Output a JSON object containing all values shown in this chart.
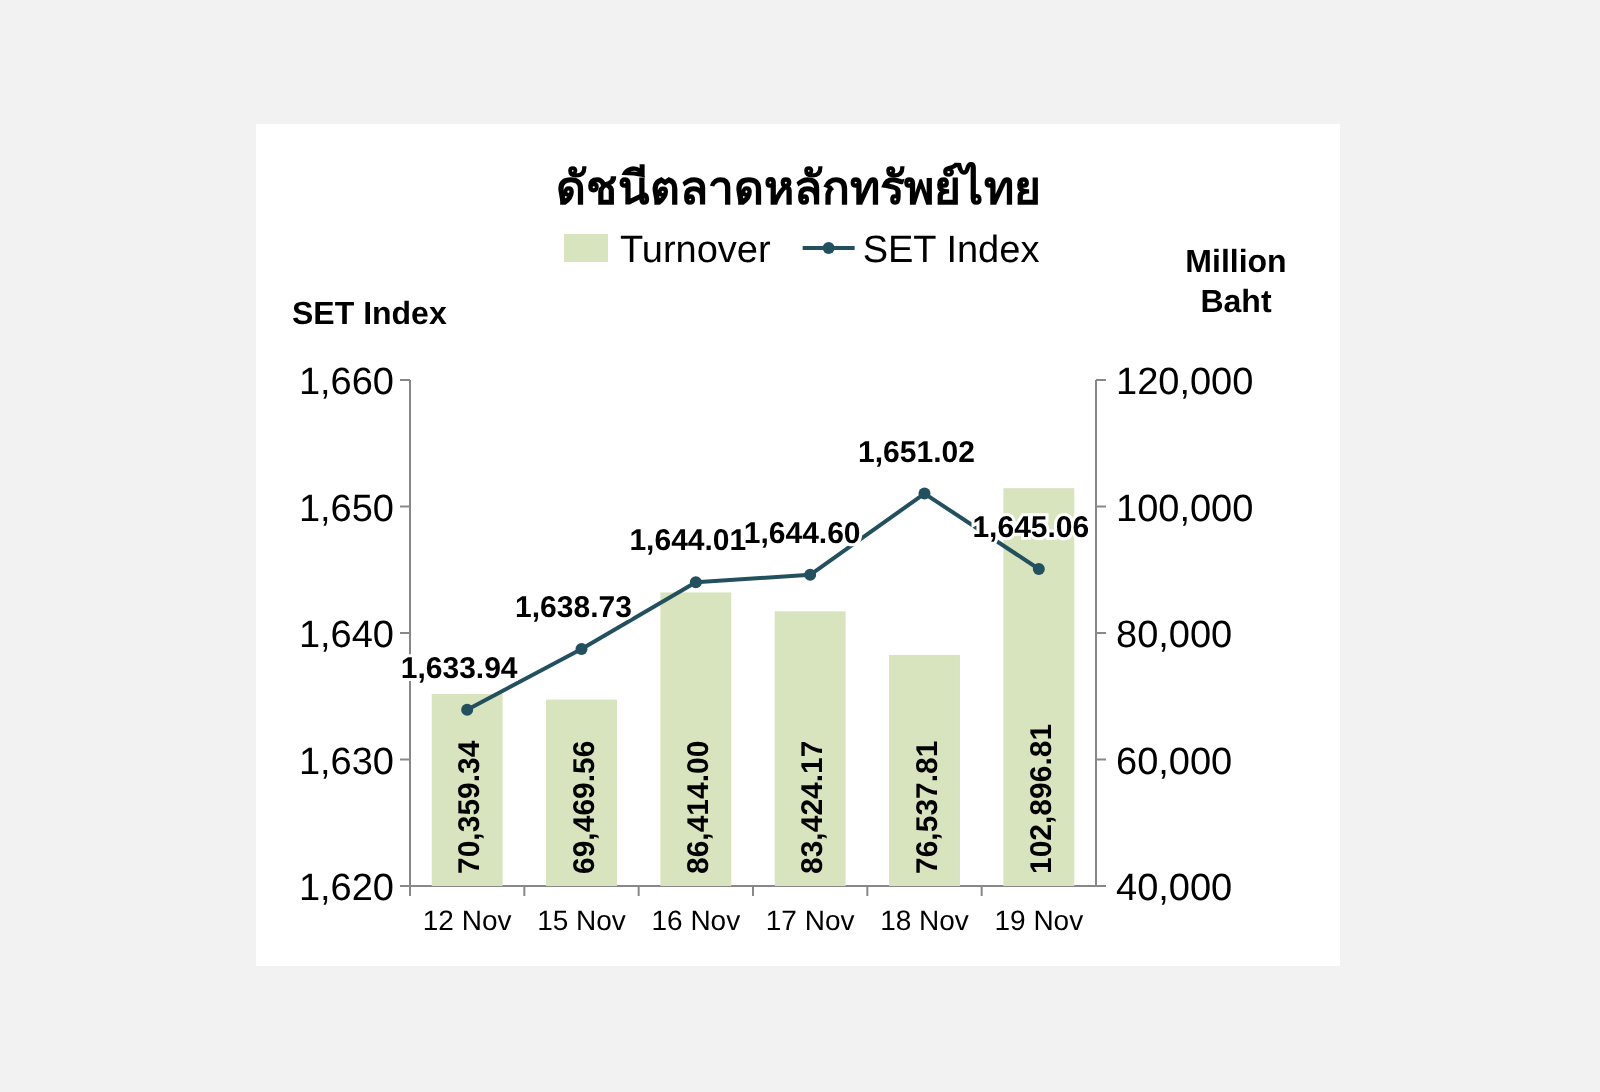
{
  "chart_data": {
    "type": "bar",
    "title": "ดัชนีตลาดหลักทรัพย์ไทย",
    "ylabel": "SET Index",
    "y2label": "Million Baht",
    "legend": "top",
    "marker": "circle",
    "categories": [
      "12 Nov",
      "15 Nov",
      "16 Nov",
      "17 Nov",
      "18 Nov",
      "19 Nov"
    ],
    "series": [
      {
        "name": "Turnover",
        "axis": "y2",
        "color": "#d7e4bd",
        "values": [
          70359.34,
          69469.56,
          86414.0,
          83424.17,
          76537.81,
          102896.81
        ],
        "value_labels": [
          "70,359.34",
          "69,469.56",
          "86,414.00",
          "83,424.17",
          "76,537.81",
          "102,896.81"
        ]
      },
      {
        "name": "SET Index",
        "type": "line",
        "axis": "y",
        "color": "#23505f",
        "values": [
          1633.94,
          1638.73,
          1644.01,
          1644.6,
          1651.02,
          1645.06
        ],
        "value_labels": [
          "1,633.94",
          "1,638.73",
          "1,644.01",
          "1,644.60",
          "1,651.02",
          "1,645.06"
        ]
      }
    ],
    "ylim": [
      1620,
      1660
    ],
    "yticks": [
      {
        "value": 1620,
        "label": "1,620"
      },
      {
        "value": 1630,
        "label": "1,630"
      },
      {
        "value": 1640,
        "label": "1,640"
      },
      {
        "value": 1650,
        "label": "1,650"
      },
      {
        "value": 1660,
        "label": "1,660"
      }
    ],
    "y2lim": [
      40000,
      120000
    ],
    "y2ticks": [
      {
        "value": 40000,
        "label": "40,000"
      },
      {
        "value": 60000,
        "label": "60,000"
      },
      {
        "value": 80000,
        "label": "80,000"
      },
      {
        "value": 100000,
        "label": "100,000"
      },
      {
        "value": 120000,
        "label": "120,000"
      }
    ]
  }
}
